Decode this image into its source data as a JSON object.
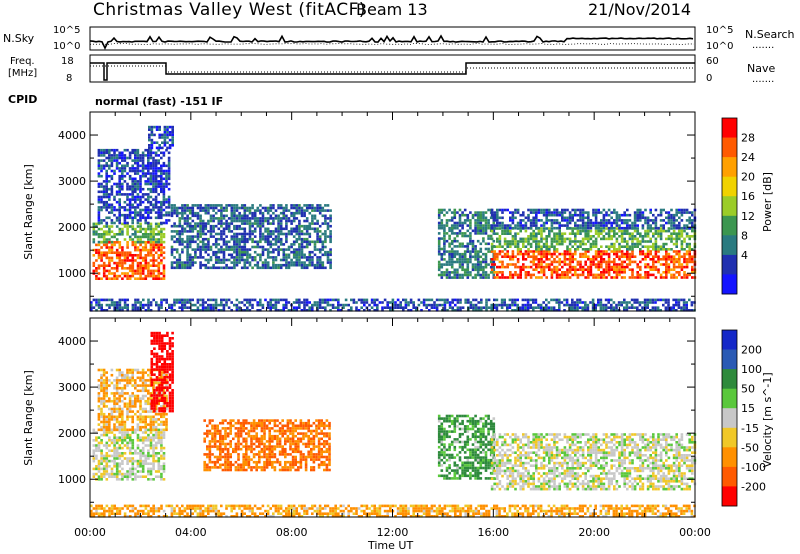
{
  "header": {
    "station": "Christmas Valley West (fitACF)",
    "beam": "Beam 13",
    "date": "21/Nov/2014"
  },
  "labels": {
    "nsky": "N.Sky",
    "nsearch": "N.Search",
    "freq_line1": "Freq.",
    "freq_line2": "[MHz]",
    "nave": "Nave",
    "cpid": "CPID",
    "cpid_value": "normal (fast) -151 IF",
    "noise_tick_hi": "10^5",
    "noise_tick_lo": "10^0",
    "freq_tick_hi": "18",
    "freq_tick_lo": "8",
    "nave_tick_hi": "60",
    "nave_tick_lo": "0",
    "dots": "......."
  },
  "chart_data": [
    {
      "type": "heatmap",
      "title": "",
      "quantity": "Power",
      "xlabel": "Time UT",
      "ylabel": "Slant Range [km]",
      "colorbar_label": "Power [dB]",
      "colorbar_ticks": [
        "28",
        "24",
        "20",
        "16",
        "12",
        "8",
        "4"
      ],
      "colorbar_colors": [
        "#ff0000",
        "#ff5a00",
        "#ffa000",
        "#f0d200",
        "#9bcc28",
        "#3c9650",
        "#2a7a80",
        "#2030b0",
        "#1414ff"
      ],
      "xlim_hours": [
        0,
        24
      ],
      "x_ticks": [
        "00:00",
        "04:00",
        "08:00",
        "12:00",
        "16:00",
        "20:00",
        "00:00"
      ],
      "ylim_km": [
        180,
        4500
      ],
      "y_ticks": [
        "1000",
        "2000",
        "3000",
        "4000"
      ],
      "regions": [
        {
          "t0": 0.1,
          "t1": 2.9,
          "r0": 900,
          "r1": 1700,
          "value": 26
        },
        {
          "t0": 0.1,
          "t1": 2.9,
          "r0": 1700,
          "r1": 2100,
          "value": 12
        },
        {
          "t0": 0.3,
          "t1": 3.1,
          "r0": 2100,
          "r1": 3700,
          "value": 4
        },
        {
          "t0": 2.3,
          "t1": 3.3,
          "r0": 3700,
          "r1": 4200,
          "value": 4
        },
        {
          "t0": 3.2,
          "t1": 9.5,
          "r0": 1100,
          "r1": 2500,
          "value": 6
        },
        {
          "t0": 13.8,
          "t1": 16.0,
          "r0": 900,
          "r1": 2400,
          "value": 8
        },
        {
          "t0": 15.9,
          "t1": 24.0,
          "r0": 900,
          "r1": 1500,
          "value": 27
        },
        {
          "t0": 15.9,
          "t1": 24.0,
          "r0": 1500,
          "r1": 2000,
          "value": 12
        },
        {
          "t0": 15.9,
          "t1": 24.0,
          "r0": 2000,
          "r1": 2400,
          "value": 5
        },
        {
          "t0": 0.0,
          "t1": 24.0,
          "r0": 180,
          "r1": 450,
          "value": 5
        }
      ]
    },
    {
      "type": "heatmap",
      "title": "",
      "quantity": "Velocity",
      "xlabel": "Time UT",
      "ylabel": "Slant Range [km]",
      "colorbar_label": "Velocity [m s^-1]",
      "colorbar_ticks": [
        "200",
        "100",
        "50",
        "15",
        "-15",
        "-50",
        "-100",
        "-200"
      ],
      "colorbar_colors": [
        "#1428c8",
        "#2a5ab4",
        "#2e8a3c",
        "#5ac83c",
        "#c8c8c8",
        "#f0c828",
        "#ff9000",
        "#ff5a00",
        "#ff0000"
      ],
      "xlim_hours": [
        0,
        24
      ],
      "x_ticks": [
        "00:00",
        "04:00",
        "08:00",
        "12:00",
        "16:00",
        "20:00",
        "00:00"
      ],
      "ylim_km": [
        180,
        4500
      ],
      "y_ticks": [
        "1000",
        "2000",
        "3000",
        "4000"
      ],
      "regions": [
        {
          "t0": 0.1,
          "t1": 2.9,
          "r0": 1000,
          "r1": 2100,
          "value": 0
        },
        {
          "t0": 0.3,
          "t1": 3.0,
          "r0": 2100,
          "r1": 3400,
          "value": -30
        },
        {
          "t0": 2.4,
          "t1": 3.3,
          "r0": 2500,
          "r1": 4200,
          "value": -200
        },
        {
          "t0": 4.5,
          "t1": 9.5,
          "r0": 1200,
          "r1": 2300,
          "value": -80
        },
        {
          "t0": 13.8,
          "t1": 16.0,
          "r0": 1000,
          "r1": 2400,
          "value": 40
        },
        {
          "t0": 15.9,
          "t1": 24.0,
          "r0": 800,
          "r1": 2000,
          "value": 0
        },
        {
          "t0": 0.0,
          "t1": 24.0,
          "r0": 180,
          "r1": 450,
          "value": -40
        }
      ]
    }
  ]
}
